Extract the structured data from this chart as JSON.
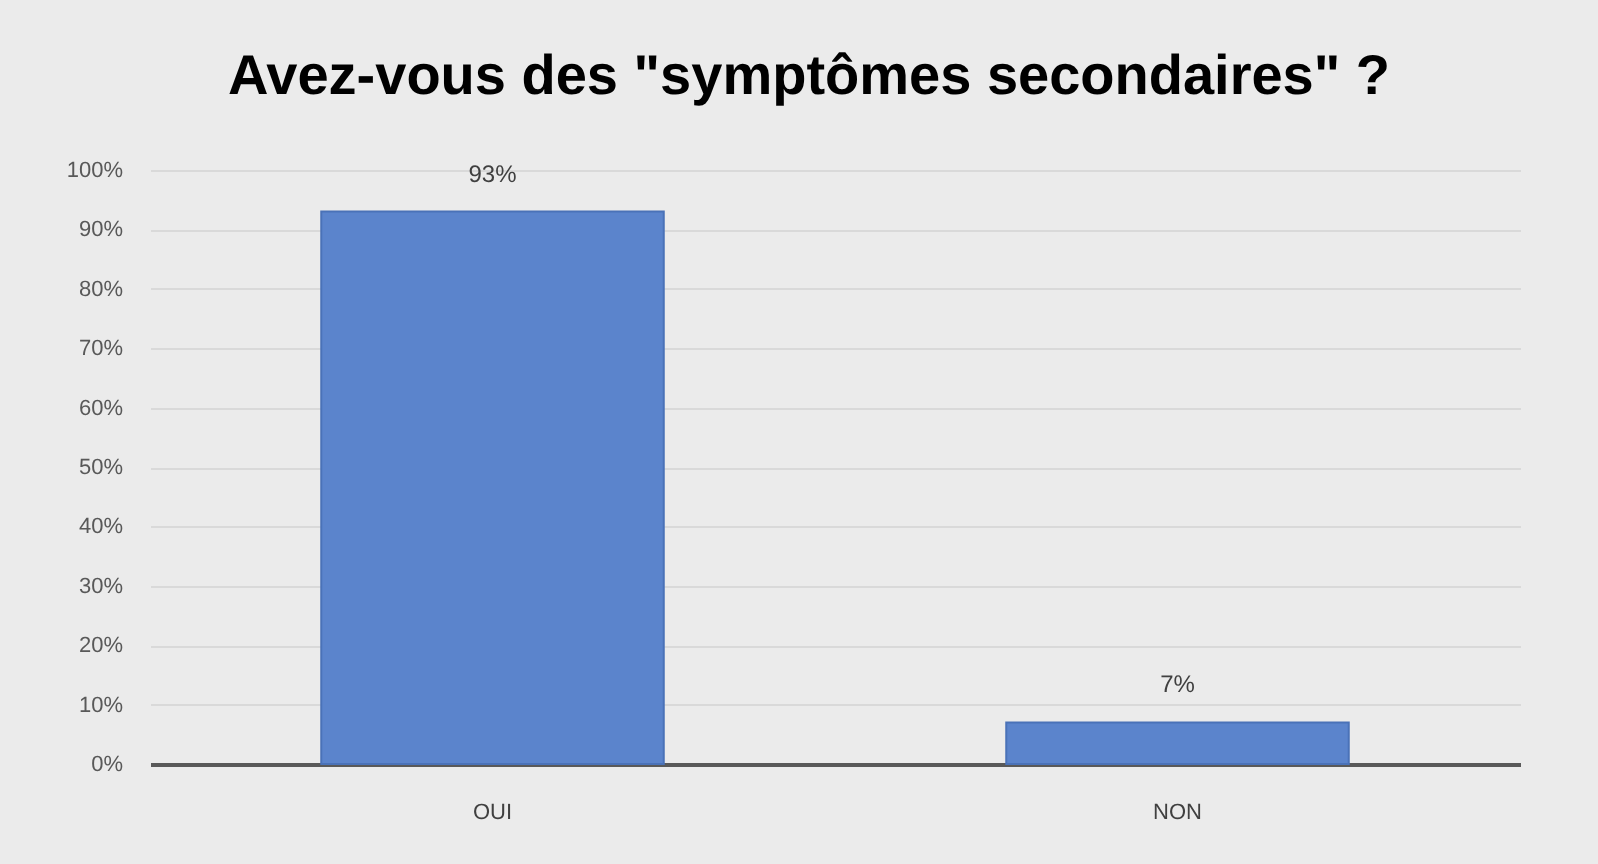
{
  "chart_data": {
    "type": "bar",
    "title": "Avez-vous des \"symptômes secondaires\" ?",
    "categories": [
      "OUI",
      "NON"
    ],
    "values": [
      93,
      7
    ],
    "value_labels": [
      "93%",
      "7%"
    ],
    "color": "#5b84cc",
    "ylim": [
      0,
      100
    ],
    "yticks": [
      {
        "value": 0,
        "label": "0%"
      },
      {
        "value": 10,
        "label": "10%"
      },
      {
        "value": 20,
        "label": "20%"
      },
      {
        "value": 30,
        "label": "30%"
      },
      {
        "value": 40,
        "label": "40%"
      },
      {
        "value": 50,
        "label": "50%"
      },
      {
        "value": 60,
        "label": "60%"
      },
      {
        "value": 70,
        "label": "70%"
      },
      {
        "value": 80,
        "label": "80%"
      },
      {
        "value": 90,
        "label": "90%"
      },
      {
        "value": 100,
        "label": "100%"
      }
    ],
    "grid": "y"
  }
}
